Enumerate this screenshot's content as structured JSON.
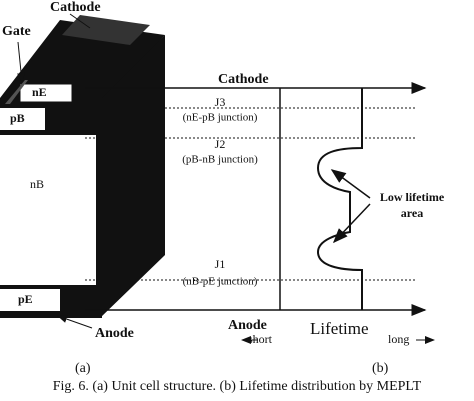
{
  "left": {
    "cathode": "Cathode",
    "gate": "Gate",
    "n_e": "nE",
    "p_b": "pB",
    "n_b": "nB",
    "p_e": "pE",
    "anode": "Anode",
    "panel": "(a)"
  },
  "right": {
    "cathode": "Cathode",
    "anode": "Anode",
    "short": "short",
    "lifetime": "Lifetime",
    "long": "long",
    "j3": "J3",
    "j3_desc": "(nE-pB junction)",
    "j2": "J2",
    "j2_desc": "(pB-nB junction)",
    "j1": "J1",
    "j1_desc": "(nB-pE junction)",
    "low_lifetime": [
      "Low lifetime",
      "area"
    ],
    "panel": "(b)"
  },
  "caption": "Fig. 6. (a) Unit cell structure. (b) Lifetime distribution by MEPLT"
}
